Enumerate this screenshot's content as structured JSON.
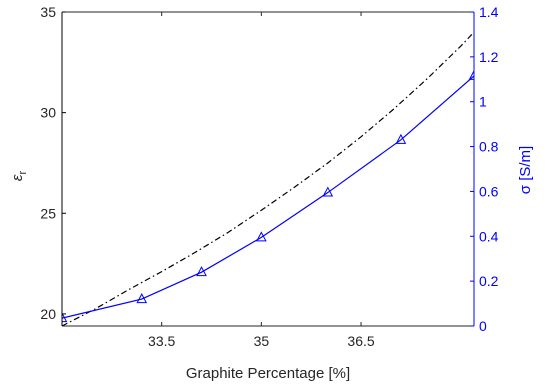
{
  "chart_data": {
    "type": "line",
    "xlabel": "Graphite Percentage [%]",
    "ylabel_left": "ε",
    "ylabel_left_sub": "r",
    "ylabel_right": "σ [S/m]",
    "xlim": [
      32,
      38.2
    ],
    "ylim_left": [
      19.4,
      35
    ],
    "ylim_right": [
      0,
      1.4
    ],
    "x_ticks": [
      33.5,
      35,
      36.5
    ],
    "x_tick_labels": [
      "33.5",
      "35",
      "36.5"
    ],
    "y_left_ticks": [
      20,
      25,
      30,
      35
    ],
    "y_left_tick_labels": [
      "20",
      "25",
      "30",
      "35"
    ],
    "y_right_ticks": [
      0,
      0.2,
      0.4,
      0.6,
      0.8,
      1,
      1.2,
      1.4
    ],
    "y_right_tick_labels": [
      "0",
      "0.2",
      "0.4",
      "0.6",
      "0.8",
      "1",
      "1.2",
      "1.4"
    ],
    "colors": {
      "left_axis": "#000000",
      "right_axis": "#0000ff",
      "frame": "#262626"
    },
    "series": [
      {
        "axis": "left",
        "style": "dash-dot",
        "color": "#000000",
        "x": [
          32.0,
          32.5,
          33.0,
          33.5,
          34.0,
          34.5,
          35.0,
          35.5,
          36.0,
          36.5,
          37.0,
          37.5,
          38.0,
          38.2
        ],
        "y": [
          19.4,
          20.25,
          21.2,
          22.1,
          23.05,
          24.05,
          25.15,
          26.3,
          27.5,
          28.8,
          30.2,
          31.7,
          33.3,
          34.0
        ]
      },
      {
        "axis": "right",
        "style": "solid",
        "color": "#0000ff",
        "marker": "triangle",
        "x": [
          32.0,
          33.2,
          34.1,
          35.0,
          36.0,
          37.1,
          38.2
        ],
        "y": [
          0.035,
          0.12,
          0.24,
          0.395,
          0.595,
          0.83,
          1.115
        ]
      }
    ]
  }
}
